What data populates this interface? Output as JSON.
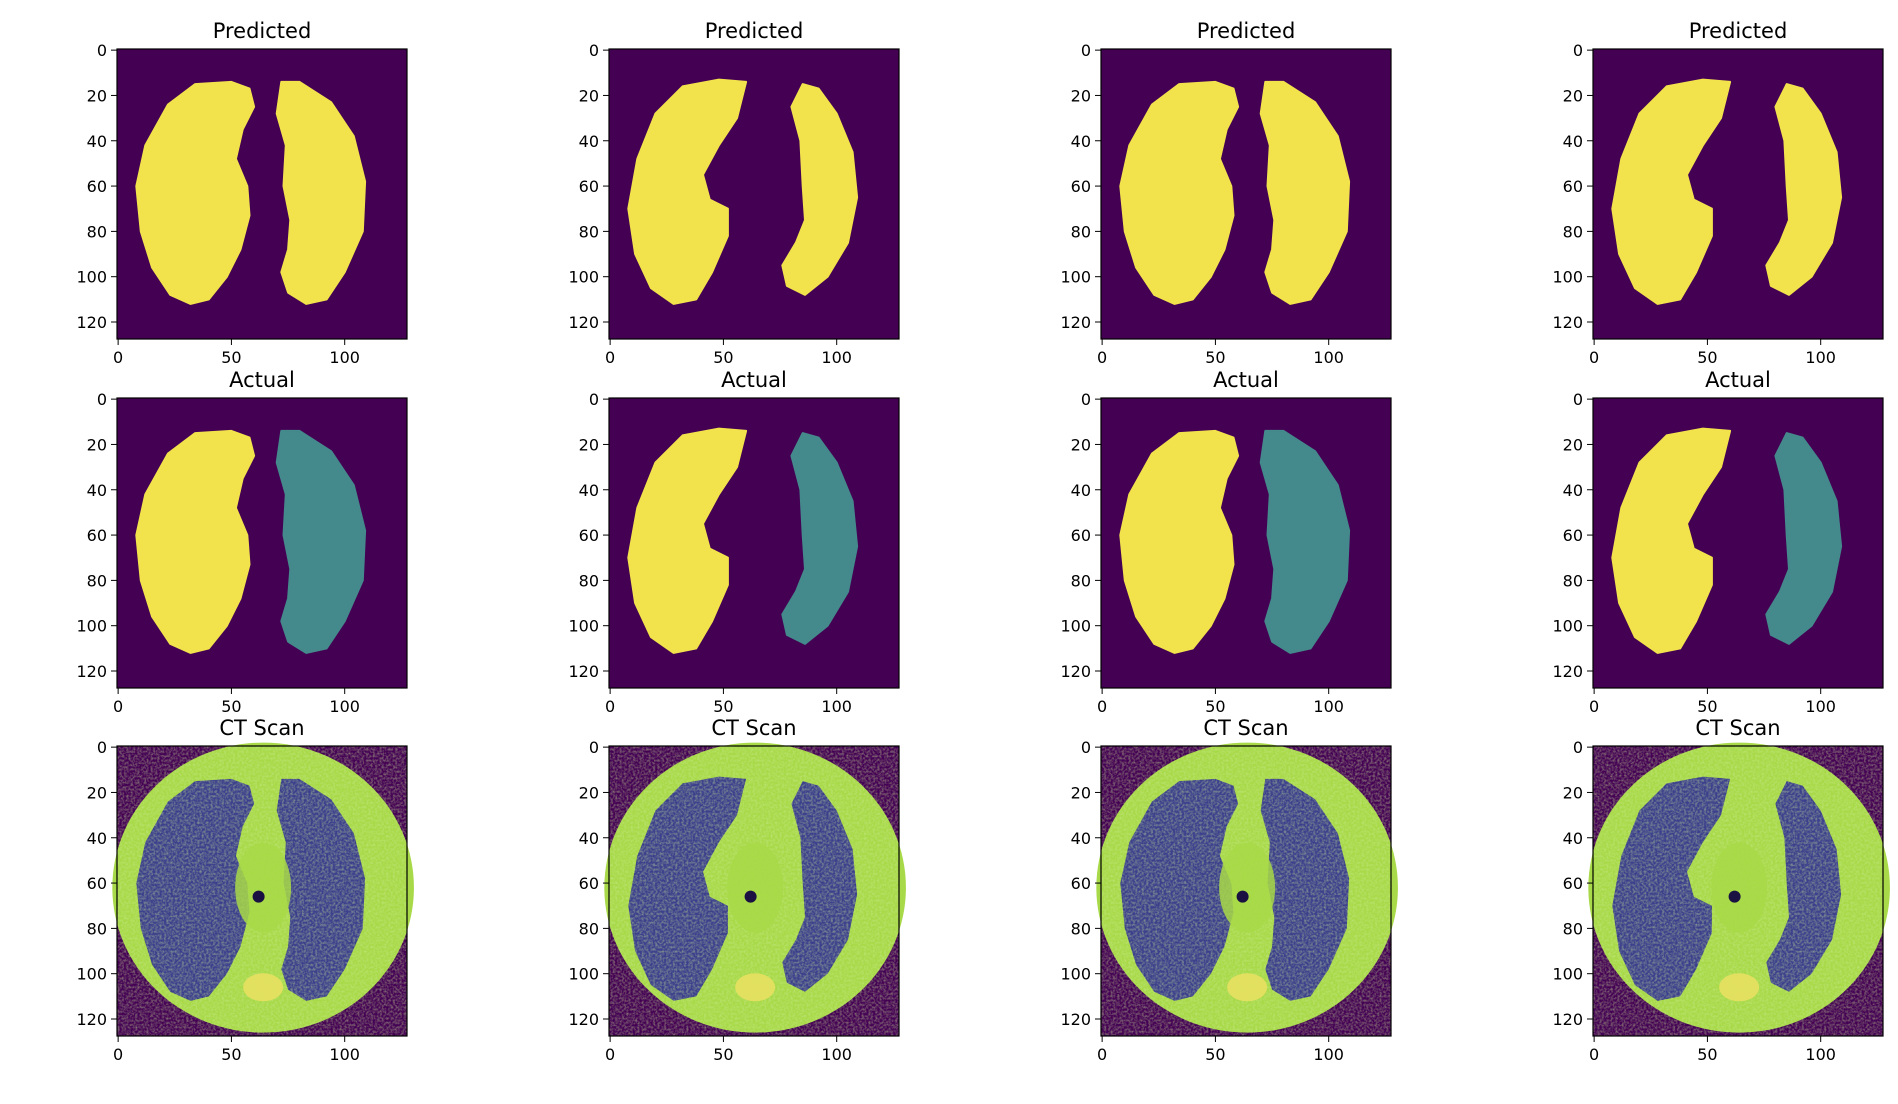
{
  "colors": {
    "background": "#440154",
    "left_lung": "#f2e34c",
    "actual_right_lung": "#44898b",
    "ct_tissue": "#a8d948",
    "ct_lung": "#3b3f8c",
    "frame": "#000000"
  },
  "chart_data": {
    "type": "heatmap",
    "layout": "3x4 grid of image panels",
    "grid": false,
    "colormap": "viridis",
    "xticks": [
      0,
      50,
      100
    ],
    "yticks": [
      0,
      20,
      40,
      60,
      80,
      100,
      120
    ],
    "xlim": [
      -0.5,
      127.5
    ],
    "ylim": [
      127.5,
      -0.5
    ],
    "rows": [
      {
        "title": "Predicted",
        "content": "binary lung segmentation mask",
        "panels": [
          {
            "left_lung_value": 1.0,
            "right_lung_value": 1.0
          },
          {
            "left_lung_value": 1.0,
            "right_lung_value": 1.0
          },
          {
            "left_lung_value": 1.0,
            "right_lung_value": 1.0
          },
          {
            "left_lung_value": 1.0,
            "right_lung_value": 1.0
          }
        ]
      },
      {
        "title": "Actual",
        "content": "ground truth lung labels",
        "panels": [
          {
            "left_lung_value": 1.0,
            "right_lung_value": 0.5
          },
          {
            "left_lung_value": 1.0,
            "right_lung_value": 0.5
          },
          {
            "left_lung_value": 1.0,
            "right_lung_value": 0.5
          },
          {
            "left_lung_value": 1.0,
            "right_lung_value": 0.5
          }
        ]
      },
      {
        "title": "CT Scan",
        "content": "axial chest CT slice",
        "panels": [
          {},
          {},
          {},
          {}
        ]
      }
    ]
  }
}
